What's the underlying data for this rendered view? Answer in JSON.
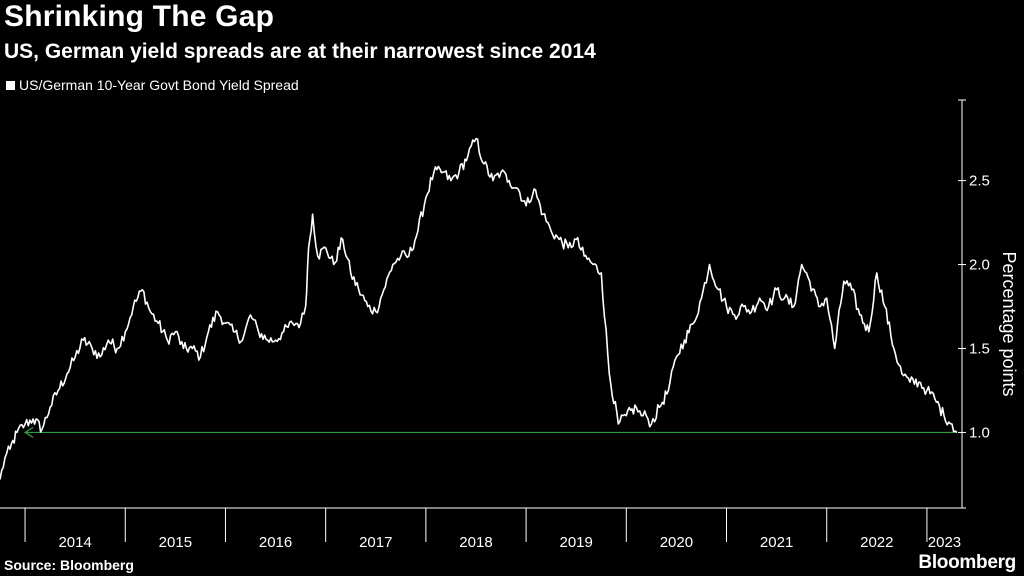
{
  "header": {
    "title": "Shrinking The Gap",
    "subtitle": "US, German yield spreads are at their narrowest since 2014"
  },
  "footer": {
    "source": "Source: Bloomberg",
    "brand": "Bloomberg"
  },
  "colors": {
    "background": "#000000",
    "series": "#ffffff",
    "reference_line": "#2ea043"
  },
  "chart_data": {
    "type": "line",
    "title": "Shrinking The Gap",
    "subtitle": "US, German yield spreads are at their narrowest since 2014",
    "ylabel": "Percentage points",
    "ylim": [
      0.55,
      2.98
    ],
    "y_ticks": [
      1.0,
      1.5,
      2.0,
      2.5
    ],
    "y_tick_labels": [
      "1.0",
      "1.5",
      "2.0",
      "2.5"
    ],
    "x_tick_labels": [
      "2014",
      "2015",
      "2016",
      "2017",
      "2018",
      "2019",
      "2020",
      "2021",
      "2022",
      "2023"
    ],
    "xlim": [
      2013.75,
      2023.35
    ],
    "y_axis_side": "right",
    "grid": false,
    "legend": "top-left",
    "reference_line": {
      "y": 1.0,
      "from_x": 2014.0,
      "to_x": 2023.3,
      "arrow": "left"
    },
    "series": [
      {
        "name": "US/German 10-Year Govt Bond Yield Spread",
        "x": [
          2013.75,
          2013.8,
          2013.85,
          2013.92,
          2014.0,
          2014.08,
          2014.17,
          2014.25,
          2014.33,
          2014.42,
          2014.5,
          2014.58,
          2014.67,
          2014.75,
          2014.83,
          2014.92,
          2015.0,
          2015.08,
          2015.17,
          2015.25,
          2015.33,
          2015.42,
          2015.5,
          2015.58,
          2015.67,
          2015.75,
          2015.83,
          2015.92,
          2016.0,
          2016.08,
          2016.17,
          2016.25,
          2016.33,
          2016.42,
          2016.5,
          2016.58,
          2016.67,
          2016.75,
          2016.8,
          2016.83,
          2016.87,
          2016.92,
          2017.0,
          2017.08,
          2017.17,
          2017.25,
          2017.33,
          2017.42,
          2017.5,
          2017.58,
          2017.67,
          2017.75,
          2017.83,
          2017.92,
          2018.0,
          2018.08,
          2018.17,
          2018.25,
          2018.33,
          2018.42,
          2018.5,
          2018.58,
          2018.67,
          2018.75,
          2018.83,
          2018.92,
          2019.0,
          2019.08,
          2019.17,
          2019.25,
          2019.33,
          2019.42,
          2019.5,
          2019.58,
          2019.67,
          2019.75,
          2019.83,
          2019.92,
          2020.0,
          2020.1,
          2020.15,
          2020.2,
          2020.25,
          2020.33,
          2020.42,
          2020.5,
          2020.58,
          2020.67,
          2020.75,
          2020.83,
          2020.92,
          2021.0,
          2021.08,
          2021.17,
          2021.25,
          2021.33,
          2021.42,
          2021.5,
          2021.58,
          2021.67,
          2021.75,
          2021.83,
          2021.92,
          2022.0,
          2022.08,
          2022.17,
          2022.25,
          2022.33,
          2022.42,
          2022.5,
          2022.58,
          2022.67,
          2022.75,
          2022.83,
          2022.92,
          2023.0,
          2023.08,
          2023.17,
          2023.25,
          2023.3
        ],
        "values": [
          0.72,
          0.85,
          0.9,
          1.0,
          1.05,
          1.08,
          1.02,
          1.15,
          1.25,
          1.35,
          1.45,
          1.55,
          1.5,
          1.45,
          1.55,
          1.5,
          1.6,
          1.75,
          1.85,
          1.72,
          1.65,
          1.55,
          1.6,
          1.5,
          1.5,
          1.45,
          1.6,
          1.72,
          1.65,
          1.6,
          1.55,
          1.7,
          1.6,
          1.55,
          1.55,
          1.6,
          1.65,
          1.65,
          1.75,
          2.1,
          2.3,
          2.05,
          2.1,
          2.0,
          2.15,
          1.95,
          1.85,
          1.75,
          1.72,
          1.85,
          2.0,
          2.05,
          2.05,
          2.2,
          2.4,
          2.55,
          2.55,
          2.5,
          2.55,
          2.65,
          2.75,
          2.6,
          2.5,
          2.55,
          2.5,
          2.45,
          2.35,
          2.45,
          2.3,
          2.2,
          2.15,
          2.1,
          2.15,
          2.05,
          2.0,
          1.95,
          1.35,
          1.05,
          1.1,
          1.15,
          1.1,
          1.1,
          1.05,
          1.15,
          1.25,
          1.45,
          1.55,
          1.65,
          1.8,
          2.0,
          1.85,
          1.75,
          1.7,
          1.75,
          1.72,
          1.8,
          1.75,
          1.85,
          1.8,
          1.75,
          2.0,
          1.9,
          1.75,
          1.8,
          1.5,
          1.9,
          1.85,
          1.7,
          1.6,
          1.95,
          1.75,
          1.5,
          1.35,
          1.3,
          1.3,
          1.25,
          1.2,
          1.1,
          1.05,
          1.0
        ]
      }
    ]
  }
}
